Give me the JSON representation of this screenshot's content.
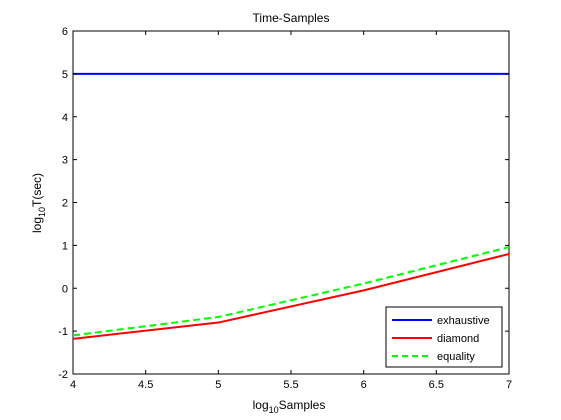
{
  "chart_data": {
    "type": "line",
    "title": "Time-Samples",
    "xlabel": {
      "base": "log",
      "sub": "10",
      "rest": "Samples"
    },
    "ylabel": {
      "base": "log",
      "sub": "10",
      "rest": "T(sec)"
    },
    "xlim": [
      4,
      7
    ],
    "ylim": [
      -2,
      6
    ],
    "xticks": [
      4,
      4.5,
      5,
      5.5,
      6,
      6.5,
      7
    ],
    "xtick_labels": [
      "4",
      "4.5",
      "5",
      "5.5",
      "6",
      "6.5",
      "7"
    ],
    "yticks": [
      -2,
      -1,
      0,
      1,
      2,
      3,
      4,
      5,
      6
    ],
    "ytick_labels": [
      "-2",
      "-1",
      "0",
      "1",
      "2",
      "3",
      "4",
      "5",
      "6"
    ],
    "grid": false,
    "legend_position": "bottom-right",
    "series": [
      {
        "name": "exhaustive",
        "color": "#0000ff",
        "style": "solid",
        "x": [
          4,
          5,
          6,
          7
        ],
        "y": [
          5.0,
          5.0,
          5.0,
          5.0
        ]
      },
      {
        "name": "diamond",
        "color": "#ff0000",
        "style": "solid",
        "x": [
          4,
          5,
          6,
          7
        ],
        "y": [
          -1.18,
          -0.8,
          -0.05,
          0.8
        ]
      },
      {
        "name": "equality",
        "color": "#00ff00",
        "style": "dashed",
        "x": [
          4,
          5,
          6,
          7
        ],
        "y": [
          -1.1,
          -0.67,
          0.11,
          0.96
        ]
      }
    ]
  }
}
